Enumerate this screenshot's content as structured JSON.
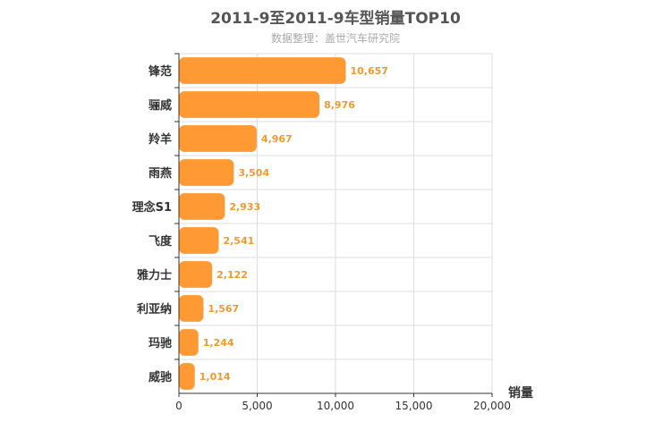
{
  "chart_data": {
    "type": "bar",
    "orientation": "horizontal",
    "title": "2011-9至2011-9车型销量TOP10",
    "subtitle": "数据整理：盖世汽车研究院",
    "xlabel": "销量",
    "ylabel": "",
    "categories": [
      "锋范",
      "骊威",
      "羚羊",
      "雨燕",
      "理念S1",
      "飞度",
      "雅力士",
      "利亚纳",
      "玛驰",
      "威驰"
    ],
    "values": [
      10657,
      8976,
      4967,
      3504,
      2933,
      2541,
      2122,
      1567,
      1244,
      1014
    ],
    "value_labels": [
      "10,657",
      "8,976",
      "4,967",
      "3,504",
      "2,933",
      "2,541",
      "2,122",
      "1,567",
      "1,244",
      "1,014"
    ],
    "xlim": [
      0,
      20000
    ],
    "xticks": [
      0,
      5000,
      10000,
      15000,
      20000
    ],
    "xtick_labels": [
      "0",
      "5,000",
      "10,000",
      "15,000",
      "20,000"
    ],
    "grid": true,
    "legend": "none",
    "colors": {
      "bar": "#ff9933",
      "data_label": "#ee9933",
      "axis": "#333333",
      "grid": "#dddddd",
      "category_label": "#333333"
    }
  }
}
